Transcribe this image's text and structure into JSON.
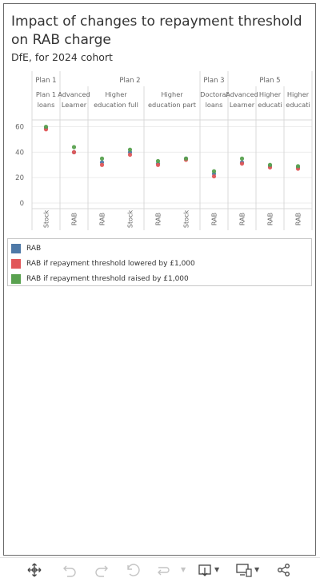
{
  "title": "Impact of changes to repayment threshold on RAB charge",
  "subtitle": "DfE, for 2024 cohort",
  "colors": {
    "rab": "#4e79a7",
    "lowered": "#e15759",
    "raised": "#59a14f"
  },
  "chart_data": {
    "type": "scatter",
    "title": "Impact of changes to repayment threshold on RAB charge",
    "subtitle": "DfE, for 2024 cohort",
    "ylim": [
      0,
      66
    ],
    "yticks": [
      0,
      20,
      40,
      60
    ],
    "groups": [
      {
        "name": "Plan 1",
        "subgroups": [
          {
            "name": "Plan 1 loans",
            "measures": [
              "Stock"
            ]
          }
        ]
      },
      {
        "name": "Plan 2",
        "subgroups": [
          {
            "name": "Advanced Learner lo..",
            "measures": [
              "RAB"
            ]
          },
          {
            "name": "Higher education full time",
            "measures": [
              "RAB",
              "Stock"
            ]
          },
          {
            "name": "Higher education part time",
            "measures": [
              "RAB",
              "Stock"
            ]
          }
        ]
      },
      {
        "name": "Plan 3",
        "subgroups": [
          {
            "name": "Doctoral loans",
            "measures": [
              "RAB"
            ]
          }
        ]
      },
      {
        "name": "Plan 5",
        "subgroups": [
          {
            "name": "Advanced Learner lo..",
            "measures": [
              "RAB"
            ]
          },
          {
            "name": "Higher education full..",
            "measures": [
              "RAB"
            ]
          },
          {
            "name": "Higher education par..",
            "measures": [
              "RAB"
            ]
          }
        ]
      }
    ],
    "series": [
      {
        "name": "RAB",
        "values": [
          59,
          40,
          32,
          40,
          31,
          35,
          23,
          32,
          29,
          28
        ]
      },
      {
        "name": "RAB if repayment threshold lowered by £1,000",
        "values": [
          58,
          40,
          30,
          38,
          30,
          34,
          21,
          31,
          28,
          27
        ]
      },
      {
        "name": "RAB if repayment threshold raised by £1,000",
        "values": [
          60,
          44,
          35,
          42,
          33,
          35,
          25,
          35,
          30,
          29
        ]
      }
    ],
    "legend": "bottom",
    "grid": true
  },
  "legend": {
    "items": [
      {
        "label": "RAB"
      },
      {
        "label": "RAB if repayment threshold lowered by £1,000"
      },
      {
        "label": "RAB if repayment threshold raised by £1,000"
      }
    ]
  },
  "toolbar": {
    "icons": [
      "move-icon",
      "undo-icon",
      "redo-icon",
      "revert-icon",
      "refresh-icon",
      "download-icon",
      "device-layout-icon",
      "share-icon"
    ]
  }
}
